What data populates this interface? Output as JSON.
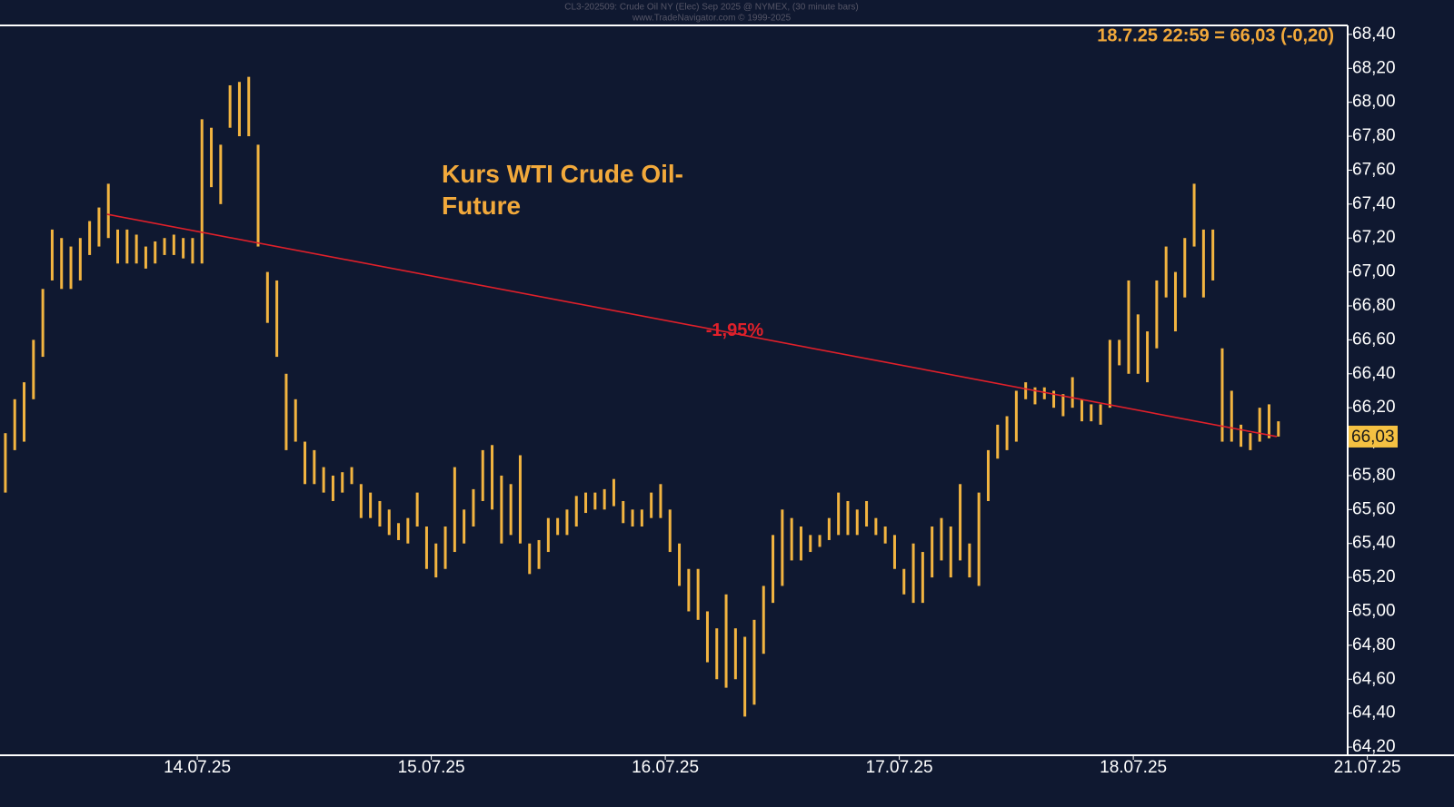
{
  "chart_data": {
    "type": "ohlc",
    "header": "CL3-202509: Crude Oil NY (Elec) Sep 2025 @ NYMEX, (30 minute bars)",
    "subheader": "www.TradeNavigator.com © 1999-2025",
    "title": "Kurs WTI Crude Oil-Future",
    "info": "18.7.25 22:59 = 66,03 (-0,20)",
    "color": "#f2b440",
    "background": "#0f1830",
    "x": [
      13.18,
      13.22,
      13.26,
      13.3,
      13.34,
      13.38,
      13.42,
      13.46,
      13.5,
      13.54,
      13.58,
      13.62,
      13.66,
      13.7,
      13.74,
      13.78,
      13.82,
      13.86,
      13.9,
      13.94,
      13.98,
      14.02,
      14.06,
      14.1,
      14.14,
      14.18,
      14.22,
      14.26,
      14.3,
      14.34,
      14.38,
      14.42,
      14.46,
      14.5,
      14.54,
      14.58,
      14.62,
      14.66,
      14.7,
      14.74,
      14.78,
      14.82,
      14.86,
      14.9,
      14.94,
      14.98,
      15.02,
      15.06,
      15.1,
      15.14,
      15.18,
      15.22,
      15.26,
      15.3,
      15.34,
      15.38,
      15.42,
      15.46,
      15.5,
      15.54,
      15.58,
      15.62,
      15.66,
      15.7,
      15.74,
      15.78,
      15.82,
      15.86,
      15.9,
      15.94,
      15.98,
      16.02,
      16.06,
      16.1,
      16.14,
      16.18,
      16.22,
      16.26,
      16.3,
      16.34,
      16.38,
      16.42,
      16.46,
      16.5,
      16.54,
      16.58,
      16.62,
      16.66,
      16.7,
      16.74,
      16.78,
      16.82,
      16.86,
      16.9,
      16.94,
      16.98,
      17.02,
      17.06,
      17.1,
      17.14,
      17.18,
      17.22,
      17.26,
      17.3,
      17.34,
      17.38,
      17.42,
      17.46,
      17.5,
      17.54,
      17.58,
      17.62,
      17.66,
      17.7,
      17.74,
      17.78,
      17.82,
      17.86,
      17.9,
      17.94,
      17.98,
      18.02,
      18.06,
      18.1,
      18.14,
      18.18,
      18.22,
      18.26,
      18.3,
      18.34,
      18.38,
      18.42,
      18.46,
      18.5,
      18.54,
      18.58,
      18.62
    ],
    "high": [
      66.05,
      66.25,
      66.35,
      66.6,
      66.9,
      67.25,
      67.2,
      67.15,
      67.2,
      67.3,
      67.38,
      67.52,
      67.25,
      67.25,
      67.22,
      67.15,
      67.18,
      67.2,
      67.22,
      67.2,
      67.2,
      67.9,
      67.85,
      67.75,
      68.1,
      68.12,
      68.15,
      67.75,
      67.0,
      66.95,
      66.4,
      66.25,
      66.0,
      65.95,
      65.85,
      65.8,
      65.82,
      65.85,
      65.75,
      65.7,
      65.65,
      65.6,
      65.52,
      65.55,
      65.7,
      65.5,
      65.4,
      65.5,
      65.85,
      65.6,
      65.72,
      65.95,
      65.98,
      65.8,
      65.75,
      65.92,
      65.4,
      65.42,
      65.55,
      65.55,
      65.6,
      65.68,
      65.7,
      65.7,
      65.72,
      65.78,
      65.65,
      65.6,
      65.6,
      65.7,
      65.75,
      65.6,
      65.4,
      65.25,
      65.25,
      65.0,
      64.9,
      65.1,
      64.9,
      64.85,
      64.95,
      65.15,
      65.45,
      65.6,
      65.55,
      65.5,
      65.45,
      65.45,
      65.55,
      65.7,
      65.65,
      65.6,
      65.65,
      65.55,
      65.5,
      65.45,
      65.25,
      65.4,
      65.35,
      65.5,
      65.55,
      65.5,
      65.75,
      65.4,
      65.7,
      65.95,
      66.1,
      66.15,
      66.3,
      66.35,
      66.32,
      66.32,
      66.3,
      66.28,
      66.38,
      66.25,
      66.22,
      66.22,
      66.6,
      66.6,
      66.95,
      66.75,
      66.65,
      66.95,
      67.15,
      67.0,
      67.2,
      67.52,
      67.25,
      67.25,
      66.55,
      66.3,
      66.1,
      66.05,
      66.2,
      66.22,
      66.12
    ],
    "low": [
      65.7,
      65.95,
      66.0,
      66.25,
      66.5,
      66.95,
      66.9,
      66.9,
      66.95,
      67.1,
      67.15,
      67.2,
      67.05,
      67.05,
      67.05,
      67.02,
      67.05,
      67.1,
      67.1,
      67.08,
      67.05,
      67.05,
      67.5,
      67.4,
      67.85,
      67.8,
      67.8,
      67.15,
      66.7,
      66.5,
      65.95,
      66.0,
      65.75,
      65.75,
      65.7,
      65.65,
      65.7,
      65.75,
      65.55,
      65.55,
      65.5,
      65.45,
      65.42,
      65.4,
      65.5,
      65.25,
      65.2,
      65.25,
      65.35,
      65.4,
      65.5,
      65.65,
      65.6,
      65.4,
      65.45,
      65.4,
      65.22,
      65.25,
      65.35,
      65.45,
      65.45,
      65.5,
      65.58,
      65.6,
      65.6,
      65.62,
      65.52,
      65.5,
      65.5,
      65.55,
      65.55,
      65.35,
      65.15,
      65.0,
      64.95,
      64.7,
      64.6,
      64.55,
      64.6,
      64.38,
      64.45,
      64.75,
      65.05,
      65.15,
      65.3,
      65.3,
      65.35,
      65.38,
      65.42,
      65.45,
      65.45,
      65.45,
      65.5,
      65.45,
      65.4,
      65.25,
      65.1,
      65.05,
      65.05,
      65.2,
      65.3,
      65.2,
      65.3,
      65.2,
      65.15,
      65.65,
      65.9,
      65.95,
      66.0,
      66.25,
      66.22,
      66.25,
      66.2,
      66.15,
      66.2,
      66.12,
      66.12,
      66.1,
      66.2,
      66.45,
      66.4,
      66.4,
      66.35,
      66.55,
      66.85,
      66.65,
      66.85,
      67.15,
      66.85,
      66.95,
      66.0,
      66.0,
      65.97,
      65.95,
      66.0,
      66.02,
      66.03
    ],
    "trendline": {
      "x": [
        13.615,
        18.613
      ],
      "values": [
        67.34,
        66.03
      ],
      "label": "-1,95%",
      "color": "#e0202a"
    },
    "last": {
      "value": 66.03,
      "label": "66,03"
    },
    "xlim": [
      13.157,
      18.916
    ],
    "xticks": [
      {
        "value": 14,
        "label": "14.07.25"
      },
      {
        "value": 15,
        "label": "15.07.25"
      },
      {
        "value": 16,
        "label": "16.07.25"
      },
      {
        "value": 17,
        "label": "17.07.25"
      },
      {
        "value": 18,
        "label": "18.07.25"
      },
      {
        "value": 19,
        "label": "21.07.25"
      }
    ],
    "ylim": [
      64.152,
      68.453
    ],
    "yticks": [
      {
        "value": 64.2,
        "label": "64,20"
      },
      {
        "value": 64.4,
        "label": "64,40"
      },
      {
        "value": 64.6,
        "label": "64,60"
      },
      {
        "value": 64.8,
        "label": "64,80"
      },
      {
        "value": 65.0,
        "label": "65,00"
      },
      {
        "value": 65.2,
        "label": "65,20"
      },
      {
        "value": 65.4,
        "label": "65,40"
      },
      {
        "value": 65.6,
        "label": "65,60"
      },
      {
        "value": 65.8,
        "label": "65,80"
      },
      {
        "value": 66.0,
        "label": "66,00"
      },
      {
        "value": 66.2,
        "label": "66,20"
      },
      {
        "value": 66.4,
        "label": "66,40"
      },
      {
        "value": 66.6,
        "label": "66,60"
      },
      {
        "value": 66.8,
        "label": "66,80"
      },
      {
        "value": 67.0,
        "label": "67,00"
      },
      {
        "value": 67.2,
        "label": "67,20"
      },
      {
        "value": 67.4,
        "label": "67,40"
      },
      {
        "value": 67.6,
        "label": "67,60"
      },
      {
        "value": 67.8,
        "label": "67,80"
      },
      {
        "value": 68.0,
        "label": "68,00"
      },
      {
        "value": 68.2,
        "label": "68,20"
      },
      {
        "value": 68.4,
        "label": "68,40"
      }
    ]
  }
}
